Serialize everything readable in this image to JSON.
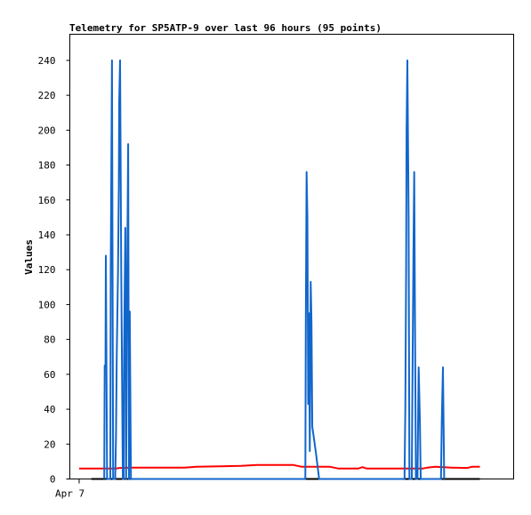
{
  "chart_data": {
    "type": "line",
    "title": "Telemetry for SP5ATP-9 over last 96 hours (95 points)",
    "ylabel": "Values",
    "xlabel": "",
    "ylim": [
      0,
      255
    ],
    "y_ticks": [
      0,
      20,
      40,
      60,
      80,
      100,
      120,
      140,
      160,
      180,
      200,
      220,
      240
    ],
    "x_range_hours": [
      0,
      96
    ],
    "x_ticks": [
      {
        "label": "Apr 7",
        "hour": 0
      }
    ],
    "grid": false,
    "legend": "none",
    "series": [
      {
        "color": "#ff0000",
        "points": [
          [
            0,
            6
          ],
          [
            9,
            6
          ],
          [
            10,
            6.3
          ],
          [
            13,
            6.5
          ],
          [
            26,
            6.5
          ],
          [
            29,
            7
          ],
          [
            40,
            7.5
          ],
          [
            44,
            8
          ],
          [
            53,
            8
          ],
          [
            55,
            7
          ],
          [
            62,
            7
          ],
          [
            64,
            6
          ],
          [
            69,
            6
          ],
          [
            70,
            6.8
          ],
          [
            71,
            6
          ],
          [
            85,
            6
          ],
          [
            86,
            6.5
          ],
          [
            88,
            7
          ],
          [
            92,
            6.5
          ],
          [
            96,
            6.3
          ],
          [
            97,
            7
          ],
          [
            99,
            7
          ]
        ]
      },
      {
        "color": "#000000",
        "points": [
          [
            3,
            0
          ],
          [
            99,
            0
          ]
        ]
      },
      {
        "color": "#1166cc",
        "points": [
          [
            6.2,
            0
          ],
          [
            6.3,
            65
          ],
          [
            6.5,
            64
          ],
          [
            6.6,
            128
          ],
          [
            6.9,
            0
          ],
          [
            7.7,
            0
          ],
          [
            7.8,
            120
          ],
          [
            8.1,
            240
          ],
          [
            8.4,
            0
          ],
          [
            8.9,
            0
          ],
          [
            9.1,
            24
          ],
          [
            9.3,
            72
          ],
          [
            9.6,
            120
          ],
          [
            9.8,
            168
          ],
          [
            9.9,
            216
          ],
          [
            10.1,
            240
          ],
          [
            10.4,
            120
          ],
          [
            10.8,
            0
          ],
          [
            11.0,
            0
          ],
          [
            11.1,
            73
          ],
          [
            11.4,
            144
          ],
          [
            11.6,
            0
          ],
          [
            11.8,
            97
          ],
          [
            12.1,
            192
          ],
          [
            12.3,
            0
          ],
          [
            12.5,
            96
          ],
          [
            12.8,
            0
          ],
          [
            55.9,
            0
          ],
          [
            56.0,
            88
          ],
          [
            56.2,
            176
          ],
          [
            56.4,
            150
          ],
          [
            56.6,
            43
          ],
          [
            56.8,
            95
          ],
          [
            57.0,
            16
          ],
          [
            57.2,
            113
          ],
          [
            57.4,
            90
          ],
          [
            57.6,
            30
          ],
          [
            58.5,
            15
          ],
          [
            59.3,
            0
          ],
          [
            80.4,
            0
          ],
          [
            80.6,
            40
          ],
          [
            80.8,
            120
          ],
          [
            80.9,
            200
          ],
          [
            81.1,
            240
          ],
          [
            81.4,
            150
          ],
          [
            81.6,
            0
          ],
          [
            82.2,
            0
          ],
          [
            82.3,
            40
          ],
          [
            82.6,
            128
          ],
          [
            82.8,
            176
          ],
          [
            83.0,
            88
          ],
          [
            83.2,
            0
          ],
          [
            83.6,
            0
          ],
          [
            83.9,
            64
          ],
          [
            84.2,
            33
          ],
          [
            84.4,
            0
          ],
          [
            89.4,
            0
          ],
          [
            89.6,
            33
          ],
          [
            89.9,
            64
          ],
          [
            90.2,
            0
          ]
        ]
      }
    ]
  }
}
